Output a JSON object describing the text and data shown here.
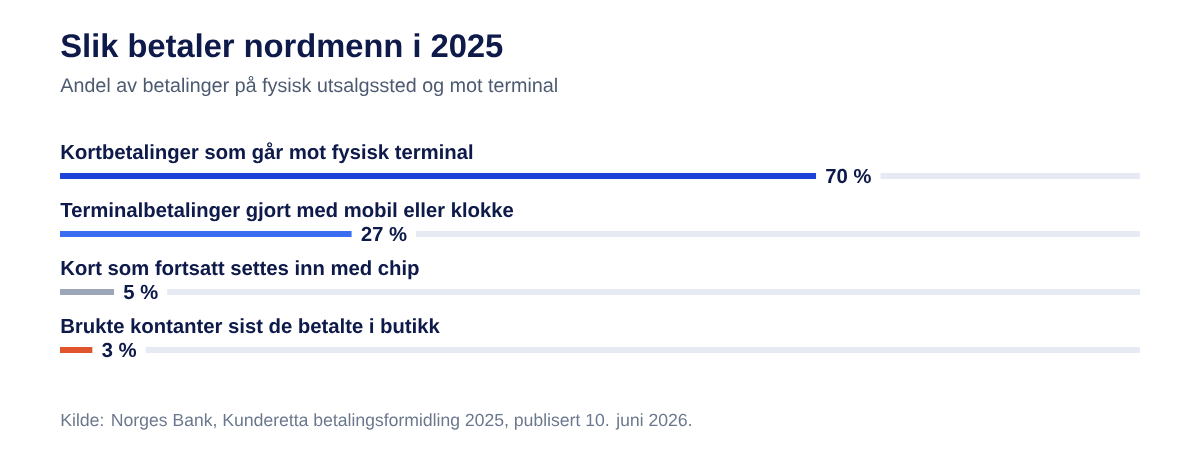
{
  "chart_data": {
    "type": "bar",
    "orientation": "horizontal",
    "title": "Slik betaler nordmenn i 2025",
    "subtitle": "Andel av betalinger på fysisk utsalgssted og mot terminal",
    "categories": [
      "Kortbetalinger som går mot fysisk terminal",
      "Terminalbetalinger gjort med mobil eller klokke",
      "Kort som fortsatt settes inn med chip",
      "Brukte kontanter sist de betalte i butikk"
    ],
    "values": [
      70,
      27,
      5,
      3
    ],
    "colors": [
      "#1d44d8",
      "#3b6df0",
      "#9ba6b8",
      "#e0552d"
    ],
    "value_labels": [
      "70 %",
      "27 %",
      "5 %",
      "3 %"
    ],
    "xlim": [
      0,
      100
    ],
    "tick_labels": "y",
    "annotations": [
      "Kilde: Norges Bank, Kunderetta betalingsformidling 2025, publisert 10. juni 2026."
    ]
  }
}
